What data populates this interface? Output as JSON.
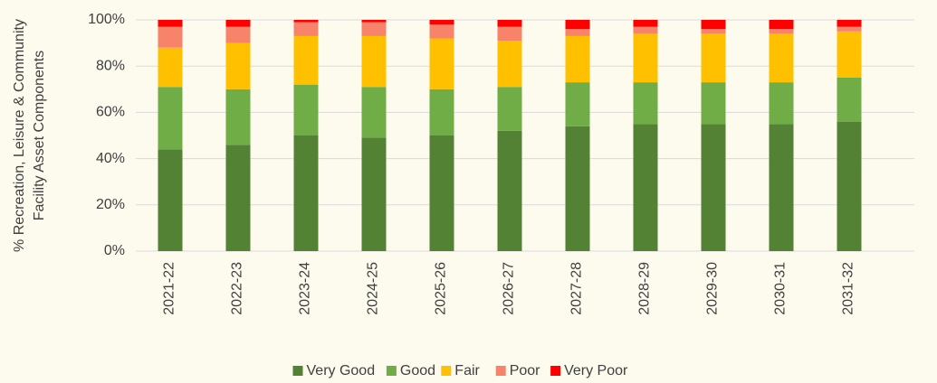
{
  "chart_data": {
    "type": "stacked_bar",
    "ylabel": [
      "% Recreation, Leisure & Community",
      "Facility Asset Components"
    ],
    "categories": [
      "2021-22",
      "2022-23",
      "2023-24",
      "2024-25",
      "2025-26",
      "2026-27",
      "2027-28",
      "2028-29",
      "2029-30",
      "2030-31",
      "2031-32"
    ],
    "series": [
      {
        "name": "Very Good",
        "color": "#548235",
        "values": [
          44,
          46,
          50,
          49,
          50,
          52,
          54,
          55,
          55,
          55,
          56
        ]
      },
      {
        "name": "Good",
        "color": "#70ad47",
        "values": [
          27,
          24,
          22,
          22,
          20,
          19,
          19,
          18,
          18,
          18,
          19
        ]
      },
      {
        "name": "Fair",
        "color": "#ffc000",
        "values": [
          17,
          20,
          21,
          22,
          22,
          20,
          20,
          21,
          21,
          21,
          20
        ]
      },
      {
        "name": "Poor",
        "color": "#f8836b",
        "values": [
          9,
          7,
          6,
          6,
          6,
          6,
          3,
          3,
          2,
          2,
          2
        ]
      },
      {
        "name": "Very Poor",
        "color": "#ff0000",
        "values": [
          3,
          3,
          1,
          1,
          2,
          3,
          4,
          3,
          4,
          4,
          3
        ]
      }
    ],
    "ylim": [
      0,
      100
    ],
    "yticks": [
      {
        "value": 0,
        "label": "0%"
      },
      {
        "value": 20,
        "label": "20%"
      },
      {
        "value": 40,
        "label": "40%"
      },
      {
        "value": 60,
        "label": "60%"
      },
      {
        "value": 80,
        "label": "80%"
      },
      {
        "value": 100,
        "label": "100%"
      }
    ],
    "grid": true,
    "legend": "bottom"
  }
}
